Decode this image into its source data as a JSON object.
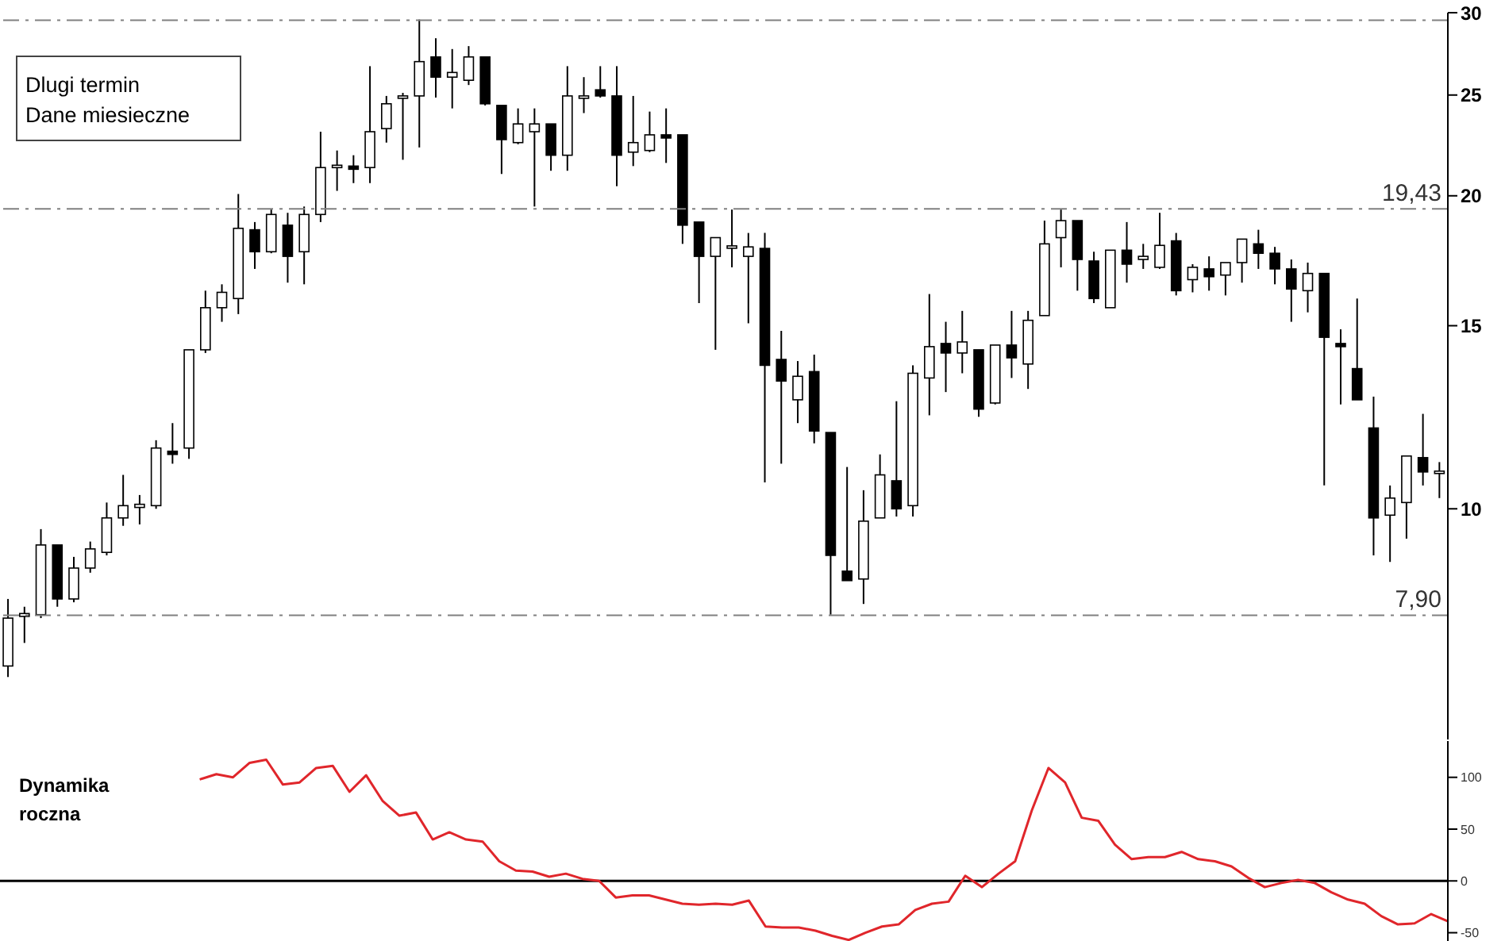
{
  "chart_data": [
    {
      "type": "candlestick",
      "annotations": [
        "Dlugi termin",
        "Dane miesieczne"
      ],
      "categories": [
        null,
        null,
        null,
        null,
        null,
        null,
        null,
        null,
        null,
        null,
        null,
        null,
        null,
        null,
        null,
        null,
        null,
        null,
        null,
        null,
        null,
        null,
        null,
        null,
        null,
        null,
        null,
        null,
        null,
        null,
        null,
        null,
        null,
        null,
        null,
        null,
        null,
        null,
        null,
        null,
        null,
        null,
        null,
        null,
        null,
        null,
        null,
        null,
        null,
        null,
        null,
        null,
        null,
        null,
        null,
        null,
        null,
        null,
        null,
        null,
        null,
        null,
        null,
        null,
        null,
        null,
        null,
        null,
        null,
        null,
        null,
        null,
        null,
        null,
        null,
        null,
        null,
        null,
        null,
        null,
        null,
        null,
        null,
        null,
        null,
        null,
        null,
        null
      ],
      "ohlc": [
        [
          7.06,
          8.19,
          6.89,
          7.85
        ],
        [
          7.88,
          8.05,
          7.43,
          7.93
        ],
        [
          7.91,
          9.56,
          7.85,
          9.23
        ],
        [
          9.23,
          9.23,
          8.05,
          8.19
        ],
        [
          8.19,
          8.99,
          8.13,
          8.77
        ],
        [
          8.77,
          9.3,
          8.68,
          9.15
        ],
        [
          9.08,
          10.14,
          9.02,
          9.8
        ],
        [
          9.8,
          10.78,
          9.63,
          10.07
        ],
        [
          10.03,
          10.31,
          9.66,
          10.1
        ],
        [
          10.07,
          11.64,
          10.0,
          11.44
        ],
        [
          11.36,
          12.09,
          11.05,
          11.28
        ],
        [
          11.44,
          14.22,
          11.17,
          14.22
        ],
        [
          14.22,
          16.21,
          14.12,
          15.61
        ],
        [
          15.61,
          16.44,
          15.13,
          16.15
        ],
        [
          15.93,
          20.08,
          15.39,
          18.61
        ],
        [
          18.55,
          18.87,
          17.01,
          17.67
        ],
        [
          17.67,
          19.4,
          17.61,
          19.19
        ],
        [
          18.74,
          19.26,
          16.5,
          17.49
        ],
        [
          17.67,
          19.53,
          16.44,
          19.19
        ],
        [
          19.19,
          23.05,
          18.87,
          21.29
        ],
        [
          21.36,
          22.11,
          20.22,
          21.4
        ],
        [
          21.36,
          21.88,
          20.57,
          21.21
        ],
        [
          21.29,
          26.65,
          20.57,
          23.05
        ],
        [
          23.21,
          24.95,
          22.5,
          24.52
        ],
        [
          24.86,
          25.12,
          21.66,
          24.95
        ],
        [
          24.95,
          29.55,
          22.26,
          26.92
        ],
        [
          27.2,
          28.35,
          24.86,
          26.01
        ],
        [
          26.01,
          27.68,
          24.27,
          26.28
        ],
        [
          25.83,
          27.86,
          25.56,
          27.2
        ],
        [
          27.2,
          27.2,
          24.43,
          24.52
        ],
        [
          24.43,
          24.43,
          20.99,
          22.65
        ],
        [
          22.5,
          24.27,
          22.42,
          23.45
        ],
        [
          23.05,
          24.27,
          19.53,
          23.45
        ],
        [
          23.45,
          23.45,
          21.14,
          21.88
        ],
        [
          21.88,
          26.65,
          21.14,
          24.95
        ],
        [
          24.86,
          26.01,
          24.02,
          24.95
        ],
        [
          25.29,
          26.65,
          24.86,
          24.95
        ],
        [
          24.95,
          26.65,
          20.43,
          21.88
        ],
        [
          22.03,
          24.95,
          21.36,
          22.5
        ],
        [
          22.11,
          24.1,
          22.03,
          22.89
        ],
        [
          22.89,
          24.27,
          21.51,
          22.73
        ],
        [
          22.89,
          22.89,
          17.98,
          18.74
        ],
        [
          18.87,
          18.87,
          15.77,
          17.49
        ],
        [
          17.49,
          18.23,
          14.22,
          18.23
        ],
        [
          17.86,
          19.4,
          17.07,
          17.9
        ],
        [
          17.49,
          18.42,
          15.08,
          17.86
        ],
        [
          17.8,
          18.42,
          10.6,
          13.74
        ],
        [
          13.92,
          14.83,
          11.05,
          13.27
        ],
        [
          12.73,
          13.87,
          12.09,
          13.41
        ],
        [
          13.55,
          14.07,
          11.56,
          11.88
        ],
        [
          11.84,
          11.84,
          7.91,
          9.02
        ],
        [
          8.71,
          10.97,
          8.53,
          8.53
        ],
        [
          8.56,
          10.42,
          8.1,
          9.73
        ],
        [
          9.8,
          11.28,
          9.8,
          10.78
        ],
        [
          10.64,
          12.69,
          9.83,
          10.0
        ],
        [
          10.07,
          13.74,
          9.83,
          13.5
        ],
        [
          13.36,
          16.09,
          12.3,
          14.32
        ],
        [
          14.42,
          15.13,
          12.95,
          14.12
        ],
        [
          14.12,
          15.5,
          13.5,
          14.47
        ],
        [
          14.22,
          14.22,
          12.26,
          12.47
        ],
        [
          12.64,
          14.37,
          12.6,
          14.37
        ],
        [
          14.37,
          15.5,
          13.36,
          13.97
        ],
        [
          13.78,
          15.5,
          13.04,
          15.18
        ],
        [
          15.34,
          18.93,
          15.34,
          17.98
        ],
        [
          18.23,
          19.4,
          17.07,
          18.93
        ],
        [
          18.93,
          18.93,
          16.21,
          17.37
        ],
        [
          17.31,
          17.67,
          15.77,
          15.93
        ],
        [
          15.61,
          17.73,
          15.61,
          17.73
        ],
        [
          17.73,
          18.87,
          16.5,
          17.19
        ],
        [
          17.37,
          17.98,
          17.01,
          17.49
        ],
        [
          17.07,
          19.26,
          17.01,
          17.92
        ],
        [
          18.1,
          18.42,
          16.04,
          16.21
        ],
        [
          16.61,
          17.19,
          16.15,
          17.07
        ],
        [
          17.01,
          17.49,
          16.21,
          16.72
        ],
        [
          16.78,
          17.25,
          16.04,
          17.25
        ],
        [
          17.25,
          18.17,
          16.5,
          18.17
        ],
        [
          17.98,
          18.55,
          17.01,
          17.61
        ],
        [
          17.61,
          17.86,
          16.44,
          17.01
        ],
        [
          17.01,
          17.37,
          15.13,
          16.27
        ],
        [
          16.21,
          17.25,
          15.45,
          16.84
        ],
        [
          16.84,
          16.84,
          10.53,
          14.62
        ],
        [
          14.42,
          14.88,
          12.6,
          14.32
        ],
        [
          13.64,
          15.93,
          12.73,
          12.73
        ],
        [
          11.96,
          12.82,
          9.02,
          9.8
        ],
        [
          9.86,
          10.53,
          8.89,
          10.24
        ],
        [
          10.14,
          11.24,
          9.36,
          11.24
        ],
        [
          11.2,
          12.34,
          10.53,
          10.85
        ],
        [
          10.85,
          11.09,
          10.24,
          10.87
        ]
      ],
      "ylim": [
        6,
        30
      ],
      "yticks": [
        10,
        15,
        20,
        25,
        30
      ],
      "log": true,
      "ref_lines": [
        {
          "axis": "y",
          "value": 29.5,
          "label": null,
          "line_style": "dashed",
          "color": "#808080"
        },
        {
          "axis": "y",
          "value": 19.43,
          "label": "19,43",
          "line_style": "dashed",
          "color": "#808080"
        },
        {
          "axis": "y",
          "value": 7.9,
          "label": "7,90",
          "line_style": "dashed",
          "color": "#808080"
        }
      ]
    },
    {
      "type": "line",
      "title": "Dynamika roczna",
      "color": "#e0262b",
      "categories": [
        null,
        null,
        null,
        null,
        null,
        null,
        null,
        null,
        null,
        null,
        null,
        null,
        null,
        null,
        null,
        null,
        null,
        null,
        null,
        null,
        null,
        null,
        null,
        null,
        null,
        null,
        null,
        null,
        null,
        null,
        null,
        null,
        null,
        null,
        null,
        null,
        null,
        null,
        null,
        null,
        null,
        null,
        null,
        null,
        null,
        null,
        null,
        null,
        null,
        null,
        null,
        null,
        null,
        null,
        null,
        null,
        null,
        null,
        null,
        null,
        null,
        null,
        null,
        null,
        null,
        null,
        null,
        null,
        null,
        null,
        null,
        null,
        null,
        null,
        null,
        null,
        null,
        null,
        null,
        null,
        null,
        null,
        null,
        null,
        null,
        null,
        null,
        null
      ],
      "values": [
        null,
        null,
        null,
        null,
        null,
        null,
        null,
        null,
        null,
        null,
        null,
        null,
        98,
        103,
        100,
        114,
        117,
        93,
        95,
        109,
        111,
        86,
        102,
        77,
        63,
        66,
        40,
        47,
        40,
        38,
        19,
        10,
        9,
        4,
        7,
        2,
        0,
        -16,
        -14,
        -14,
        -18,
        -22,
        -23,
        -22,
        -23,
        -19,
        -44,
        -45,
        -45,
        -48,
        -53,
        -57,
        -50,
        -44,
        -42,
        -28,
        -22,
        -20,
        5,
        -6,
        7,
        19,
        68,
        109,
        95,
        61,
        58,
        35,
        21,
        23,
        23,
        28,
        21,
        19,
        14,
        3,
        -6,
        -2,
        1,
        -2,
        -11,
        -18,
        -22,
        -34,
        -42,
        -41,
        -32,
        -39
      ],
      "ylim": [
        -58,
        135
      ],
      "yticks": [
        -50,
        0,
        50,
        100
      ],
      "ref_lines": [
        {
          "axis": "y",
          "value": 0,
          "label": null,
          "line_style": "solid",
          "color": "#000000"
        }
      ]
    }
  ]
}
